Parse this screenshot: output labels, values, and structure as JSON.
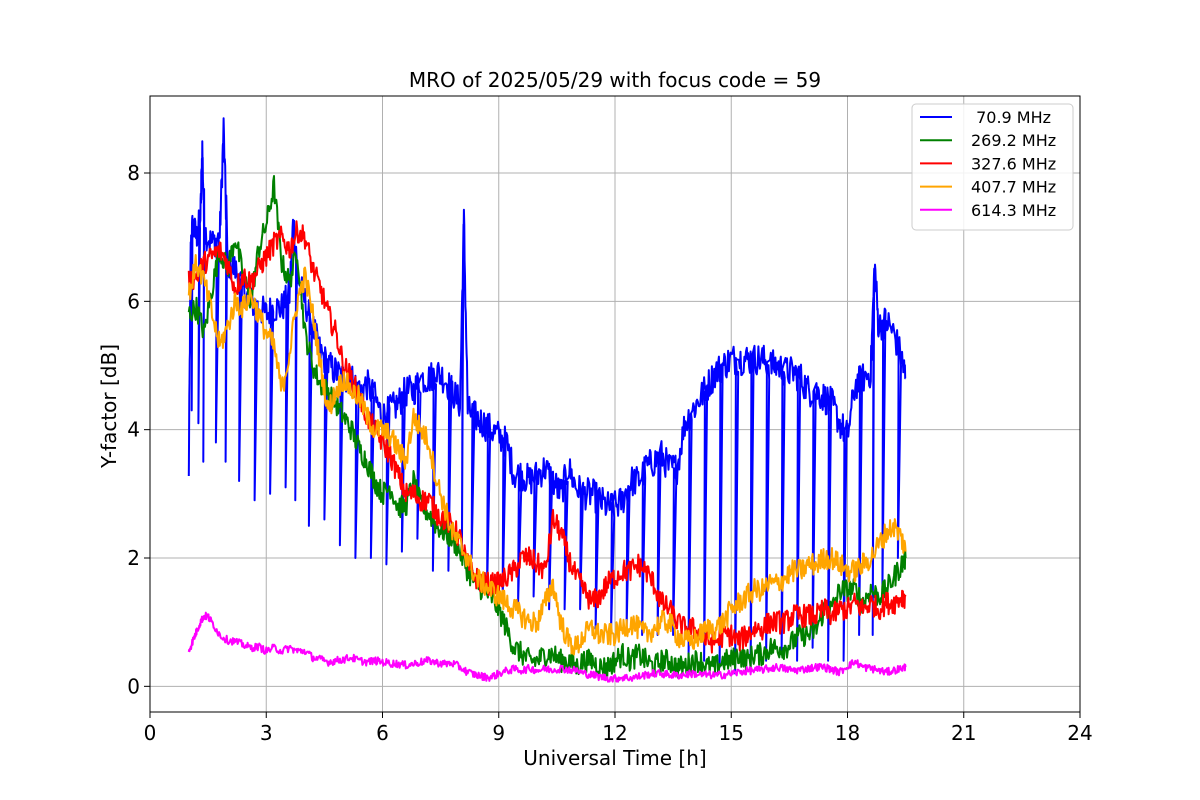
{
  "chart_data": {
    "type": "line",
    "title": "MRO of 2025/05/29 with focus code = 59",
    "xlabel": "Universal Time [h]",
    "ylabel": "Y-factor [dB]",
    "xlim": [
      0,
      24
    ],
    "ylim": [
      -0.4,
      9.2
    ],
    "xticks": [
      0,
      3,
      6,
      9,
      12,
      15,
      18,
      21,
      24
    ],
    "yticks": [
      0,
      2,
      4,
      6,
      8
    ],
    "grid": true,
    "legend_position": "top-right",
    "series": [
      {
        "name": " 70.9 MHz",
        "color": "#0000ff",
        "x": [
          1.0,
          1.05,
          1.1,
          1.2,
          1.3,
          1.35,
          1.4,
          1.6,
          1.8,
          1.9,
          2.0,
          2.2,
          2.4,
          2.6,
          2.8,
          3.0,
          3.2,
          3.4,
          3.6,
          3.7,
          3.8,
          4.0,
          4.2,
          4.4,
          4.6,
          4.8,
          5.0,
          5.2,
          5.4,
          5.6,
          5.8,
          6.0,
          6.2,
          6.4,
          6.6,
          6.8,
          7.0,
          7.2,
          7.4,
          7.6,
          7.8,
          8.0,
          8.1,
          8.2,
          8.4,
          8.6,
          8.8,
          9.0,
          9.2,
          9.4,
          9.6,
          9.8,
          10.0,
          10.2,
          10.4,
          10.6,
          10.8,
          11.0,
          11.2,
          11.4,
          11.6,
          11.8,
          12.0,
          12.2,
          12.4,
          12.6,
          12.8,
          13.0,
          13.2,
          13.4,
          13.6,
          13.8,
          14.0,
          14.2,
          14.4,
          14.6,
          14.8,
          15.0,
          15.2,
          15.4,
          15.6,
          15.8,
          16.0,
          16.2,
          16.4,
          16.6,
          16.8,
          17.0,
          17.2,
          17.4,
          17.6,
          17.8,
          18.0,
          18.2,
          18.4,
          18.6,
          18.7,
          18.8,
          19.0,
          19.2,
          19.4,
          19.5
        ],
        "y": [
          3.2,
          6.8,
          7.2,
          7.0,
          7.3,
          8.4,
          7.1,
          6.9,
          7.0,
          8.7,
          6.6,
          6.5,
          6.2,
          6.0,
          5.9,
          5.8,
          5.9,
          5.9,
          6.1,
          7.3,
          6.4,
          6.0,
          5.6,
          5.2,
          5.0,
          4.9,
          4.8,
          4.8,
          4.6,
          4.7,
          4.5,
          4.2,
          4.3,
          4.4,
          4.6,
          4.6,
          4.8,
          4.8,
          4.9,
          4.8,
          4.6,
          4.4,
          7.3,
          4.3,
          4.2,
          4.1,
          4.0,
          3.9,
          3.8,
          3.3,
          3.3,
          3.2,
          3.3,
          3.4,
          3.2,
          3.0,
          3.4,
          3.1,
          3.0,
          3.0,
          2.9,
          2.8,
          2.8,
          2.9,
          3.2,
          3.2,
          3.4,
          3.5,
          3.6,
          3.4,
          3.4,
          4.1,
          4.3,
          4.5,
          4.7,
          4.9,
          5.0,
          5.1,
          5.1,
          5.1,
          5.1,
          5.1,
          5.0,
          5.0,
          4.9,
          4.9,
          4.8,
          4.6,
          4.6,
          4.5,
          4.4,
          4.1,
          3.9,
          4.7,
          4.8,
          4.9,
          6.6,
          5.6,
          5.7,
          5.5,
          5.1,
          4.8
        ],
        "dips_to": [
          4.3,
          4.1,
          3.5,
          3.8,
          3.5,
          3.2,
          2.9,
          3.0,
          3.1,
          2.9,
          2.5,
          2.6,
          2.2,
          2.0,
          2.0,
          1.9,
          2.1,
          2.3,
          1.8,
          1.8,
          2.0,
          2.0,
          1.5,
          1.3,
          1.3,
          1.4,
          1.2,
          1.2,
          1.2,
          0.9,
          0.9,
          0.9,
          0.8,
          0.8,
          0.8,
          0.5,
          0.4,
          0.3,
          0.2,
          0.3,
          0.4,
          0.5,
          0.4,
          0.6,
          0.4,
          0.4,
          0.8,
          0.8,
          1.5,
          2.0,
          2.5,
          3.0,
          3.3,
          3.6,
          4.0,
          4.2,
          4.1,
          4.0,
          4.0,
          3.9,
          3.7,
          3.8,
          3.2,
          0.3
        ]
      },
      {
        "name": "269.2 MHz",
        "color": "#008000",
        "x": [
          1.0,
          1.2,
          1.4,
          1.6,
          1.8,
          2.0,
          2.2,
          2.4,
          2.6,
          2.8,
          3.0,
          3.2,
          3.4,
          3.6,
          3.8,
          4.0,
          4.2,
          4.4,
          4.6,
          4.8,
          5.0,
          5.2,
          5.4,
          5.6,
          5.8,
          6.0,
          6.2,
          6.4,
          6.6,
          6.8,
          7.0,
          7.2,
          7.4,
          7.6,
          7.8,
          8.0,
          8.2,
          8.4,
          8.6,
          8.8,
          9.0,
          9.2,
          9.4,
          9.6,
          9.8,
          10.0,
          10.2,
          10.4,
          10.6,
          10.8,
          11.0,
          11.2,
          11.4,
          11.6,
          11.8,
          12.0,
          12.2,
          12.4,
          12.6,
          12.8,
          13.0,
          13.2,
          13.4,
          13.6,
          13.8,
          14.0,
          14.2,
          14.4,
          14.6,
          14.8,
          15.0,
          15.2,
          15.4,
          15.6,
          15.8,
          16.0,
          16.2,
          16.4,
          16.6,
          16.8,
          17.0,
          17.2,
          17.4,
          17.6,
          17.8,
          18.0,
          18.2,
          18.4,
          18.6,
          18.8,
          19.0,
          19.2,
          19.4,
          19.5
        ],
        "y": [
          5.8,
          5.9,
          5.5,
          6.2,
          6.8,
          6.5,
          7.0,
          6.4,
          6.0,
          6.8,
          7.2,
          7.8,
          6.6,
          6.3,
          6.8,
          5.5,
          5.0,
          4.7,
          4.6,
          4.4,
          4.2,
          4.0,
          3.7,
          3.5,
          3.2,
          3.0,
          3.1,
          2.8,
          2.8,
          3.2,
          2.8,
          2.7,
          2.5,
          2.4,
          2.3,
          2.1,
          1.8,
          1.6,
          1.5,
          1.4,
          1.2,
          0.9,
          0.6,
          0.5,
          0.4,
          0.4,
          0.5,
          0.5,
          0.4,
          0.4,
          0.3,
          0.4,
          0.4,
          0.3,
          0.3,
          0.4,
          0.5,
          0.4,
          0.5,
          0.4,
          0.3,
          0.4,
          0.4,
          0.3,
          0.3,
          0.4,
          0.4,
          0.3,
          0.3,
          0.4,
          0.4,
          0.5,
          0.4,
          0.5,
          0.5,
          0.6,
          0.6,
          0.6,
          0.7,
          0.8,
          0.8,
          0.9,
          1.2,
          1.2,
          1.5,
          1.5,
          1.5,
          1.3,
          1.5,
          1.4,
          1.5,
          1.7,
          1.9,
          2.0
        ]
      },
      {
        "name": "327.6 MHz",
        "color": "#ff0000",
        "x": [
          1.0,
          1.2,
          1.4,
          1.6,
          1.8,
          2.0,
          2.2,
          2.4,
          2.6,
          2.8,
          3.0,
          3.2,
          3.4,
          3.6,
          3.8,
          4.0,
          4.2,
          4.4,
          4.6,
          4.8,
          5.0,
          5.2,
          5.4,
          5.6,
          5.8,
          6.0,
          6.2,
          6.4,
          6.6,
          6.8,
          7.0,
          7.2,
          7.4,
          7.6,
          7.8,
          8.0,
          8.2,
          8.4,
          8.6,
          8.8,
          9.0,
          9.2,
          9.4,
          9.6,
          9.8,
          10.0,
          10.2,
          10.4,
          10.6,
          10.8,
          11.0,
          11.2,
          11.4,
          11.6,
          11.8,
          12.0,
          12.2,
          12.4,
          12.6,
          12.8,
          13.0,
          13.2,
          13.4,
          13.6,
          13.8,
          14.0,
          14.2,
          14.4,
          14.6,
          14.8,
          15.0,
          15.2,
          15.4,
          15.6,
          15.8,
          16.0,
          16.2,
          16.4,
          16.6,
          16.8,
          17.0,
          17.2,
          17.4,
          17.6,
          17.8,
          18.0,
          18.2,
          18.4,
          18.6,
          18.8,
          19.0,
          19.2,
          19.4,
          19.5
        ],
        "y": [
          6.3,
          6.4,
          6.6,
          6.7,
          6.8,
          6.6,
          6.2,
          6.4,
          6.3,
          6.5,
          6.7,
          6.9,
          7.0,
          6.8,
          7.1,
          7.0,
          6.5,
          6.2,
          5.8,
          5.5,
          5.0,
          4.8,
          4.5,
          4.2,
          4.0,
          3.8,
          3.6,
          3.3,
          3.0,
          3.0,
          2.9,
          2.9,
          2.7,
          2.6,
          2.5,
          2.3,
          1.9,
          1.7,
          1.6,
          1.6,
          1.6,
          1.7,
          1.8,
          2.0,
          2.0,
          1.9,
          1.8,
          2.6,
          2.4,
          2.0,
          1.7,
          1.5,
          1.3,
          1.4,
          1.6,
          1.7,
          1.8,
          1.8,
          1.9,
          1.8,
          1.6,
          1.3,
          1.2,
          1.0,
          0.9,
          0.9,
          0.8,
          0.7,
          0.7,
          0.8,
          0.8,
          0.7,
          0.8,
          0.9,
          0.9,
          1.0,
          1.0,
          1.0,
          1.1,
          1.1,
          1.1,
          1.1,
          1.2,
          1.1,
          1.2,
          1.2,
          1.3,
          1.2,
          1.3,
          1.2,
          1.3,
          1.3,
          1.4,
          1.4
        ]
      },
      {
        "name": "407.7 MHz",
        "color": "#ffa500",
        "x": [
          1.0,
          1.2,
          1.4,
          1.6,
          1.8,
          2.0,
          2.2,
          2.4,
          2.6,
          2.8,
          3.0,
          3.2,
          3.4,
          3.6,
          3.8,
          4.0,
          4.2,
          4.4,
          4.6,
          4.8,
          5.0,
          5.2,
          5.4,
          5.6,
          5.8,
          6.0,
          6.2,
          6.4,
          6.6,
          6.8,
          7.0,
          7.2,
          7.4,
          7.6,
          7.8,
          8.0,
          8.2,
          8.4,
          8.6,
          8.8,
          9.0,
          9.2,
          9.4,
          9.6,
          9.8,
          10.0,
          10.2,
          10.4,
          10.6,
          10.8,
          11.0,
          11.2,
          11.4,
          11.6,
          11.8,
          12.0,
          12.2,
          12.4,
          12.6,
          12.8,
          13.0,
          13.2,
          13.4,
          13.6,
          13.8,
          14.0,
          14.2,
          14.4,
          14.6,
          14.8,
          15.0,
          15.2,
          15.4,
          15.6,
          15.8,
          16.0,
          16.2,
          16.4,
          16.6,
          16.8,
          17.0,
          17.2,
          17.4,
          17.6,
          17.8,
          18.0,
          18.2,
          18.4,
          18.6,
          18.8,
          19.0,
          19.2,
          19.4,
          19.5
        ],
        "y": [
          6.1,
          6.6,
          6.3,
          5.8,
          5.3,
          5.6,
          6.0,
          5.9,
          6.1,
          5.8,
          5.5,
          5.3,
          4.6,
          5.2,
          6.0,
          6.4,
          5.8,
          5.0,
          4.3,
          4.6,
          4.8,
          4.6,
          4.5,
          4.2,
          4.0,
          4.0,
          3.9,
          3.7,
          3.5,
          4.2,
          4.0,
          3.8,
          3.2,
          2.8,
          2.4,
          2.2,
          2.0,
          1.7,
          1.6,
          1.5,
          1.4,
          1.3,
          1.2,
          1.1,
          1.0,
          1.0,
          1.3,
          1.6,
          1.0,
          0.7,
          0.6,
          0.8,
          0.9,
          0.8,
          0.8,
          0.8,
          0.9,
          1.0,
          0.9,
          0.8,
          0.9,
          1.0,
          1.0,
          0.8,
          0.7,
          0.7,
          0.8,
          0.9,
          0.9,
          1.0,
          1.2,
          1.3,
          1.4,
          1.5,
          1.5,
          1.6,
          1.6,
          1.7,
          1.8,
          1.8,
          1.9,
          1.9,
          2.0,
          2.0,
          1.9,
          1.8,
          1.8,
          1.9,
          2.0,
          2.2,
          2.4,
          2.5,
          2.3,
          2.1
        ]
      },
      {
        "name": "614.3 MHz",
        "color": "#ff00ff",
        "x": [
          1.0,
          1.1,
          1.2,
          1.3,
          1.4,
          1.5,
          1.6,
          1.8,
          2.0,
          2.2,
          2.4,
          2.6,
          2.8,
          3.0,
          3.2,
          3.4,
          3.6,
          3.8,
          4.0,
          4.2,
          4.4,
          4.6,
          4.8,
          5.0,
          5.2,
          5.4,
          5.6,
          5.8,
          6.0,
          6.2,
          6.4,
          6.6,
          6.8,
          7.0,
          7.2,
          7.4,
          7.6,
          7.8,
          8.0,
          8.2,
          8.4,
          8.6,
          8.8,
          9.0,
          9.2,
          9.4,
          9.6,
          9.8,
          10.0,
          10.2,
          10.4,
          10.6,
          10.8,
          11.0,
          11.2,
          11.4,
          11.6,
          11.8,
          12.0,
          12.2,
          12.4,
          12.6,
          12.8,
          13.0,
          13.2,
          13.4,
          13.6,
          13.8,
          14.0,
          14.2,
          14.4,
          14.6,
          14.8,
          15.0,
          15.2,
          15.4,
          15.6,
          15.8,
          16.0,
          16.2,
          16.4,
          16.6,
          16.8,
          17.0,
          17.2,
          17.4,
          17.6,
          17.8,
          18.0,
          18.2,
          18.4,
          18.6,
          18.8,
          19.0,
          19.2,
          19.4,
          19.5
        ],
        "y": [
          0.55,
          0.7,
          0.85,
          1.0,
          1.1,
          1.08,
          1.0,
          0.8,
          0.72,
          0.7,
          0.65,
          0.6,
          0.62,
          0.55,
          0.6,
          0.55,
          0.6,
          0.55,
          0.55,
          0.45,
          0.42,
          0.38,
          0.4,
          0.42,
          0.45,
          0.4,
          0.38,
          0.4,
          0.38,
          0.36,
          0.35,
          0.33,
          0.35,
          0.38,
          0.4,
          0.37,
          0.35,
          0.36,
          0.3,
          0.22,
          0.18,
          0.15,
          0.14,
          0.2,
          0.24,
          0.27,
          0.25,
          0.28,
          0.25,
          0.27,
          0.26,
          0.28,
          0.26,
          0.25,
          0.2,
          0.18,
          0.15,
          0.13,
          0.12,
          0.14,
          0.13,
          0.15,
          0.18,
          0.2,
          0.2,
          0.18,
          0.17,
          0.18,
          0.2,
          0.18,
          0.18,
          0.17,
          0.18,
          0.2,
          0.22,
          0.24,
          0.25,
          0.26,
          0.28,
          0.3,
          0.27,
          0.25,
          0.26,
          0.28,
          0.3,
          0.3,
          0.26,
          0.22,
          0.32,
          0.38,
          0.3,
          0.28,
          0.25,
          0.22,
          0.25,
          0.28,
          0.3
        ]
      }
    ]
  }
}
